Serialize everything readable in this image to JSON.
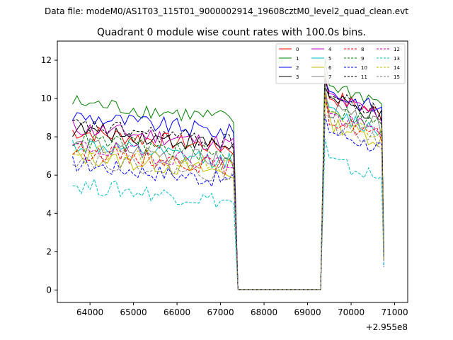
{
  "chart_data": {
    "type": "line",
    "suptitle": "Data file: modeM0/AS1T03_115T01_9000002914_19608cztM0_level2_quad_clean.evt",
    "title": "Quadrant 0 module wise count rates with 100.0s bins.",
    "xlabel": "",
    "ylabel": "",
    "x_offset_label": "+2.955e8",
    "xlim": [
      63250,
      71300
    ],
    "ylim": [
      -0.65,
      13.0
    ],
    "x_ticks": [
      64000,
      65000,
      66000,
      67000,
      68000,
      69000,
      70000,
      71000
    ],
    "x_tick_labels": [
      "64000",
      "65000",
      "66000",
      "67000",
      "68000",
      "69000",
      "70000",
      "71000"
    ],
    "y_ticks": [
      0,
      2,
      4,
      6,
      8,
      10,
      12
    ],
    "y_tick_labels": [
      "0",
      "2",
      "4",
      "6",
      "8",
      "10",
      "12"
    ],
    "legend_position": "top-right",
    "segments": [
      {
        "start": 63600,
        "end": 67300,
        "step": 100
      },
      {
        "start": 67400,
        "end": 69300,
        "step": 100
      },
      {
        "start": 69400,
        "end": 70700,
        "step": 100
      },
      {
        "start": 70750,
        "end": 70750,
        "step": 100
      }
    ],
    "series": [
      {
        "name": "0",
        "color": "#ff0000",
        "style": "solid",
        "base1": 8.3,
        "base2": 10.2,
        "last": 1.9
      },
      {
        "name": "1",
        "color": "#008000",
        "style": "solid",
        "base1": 9.8,
        "base2": 10.8,
        "last": 2.3
      },
      {
        "name": "2",
        "color": "#0000ff",
        "style": "solid",
        "base1": 9.1,
        "base2": 10.4,
        "last": 2.1
      },
      {
        "name": "3",
        "color": "#000000",
        "style": "solid",
        "base1": 8.4,
        "base2": 10.0,
        "last": 1.9
      },
      {
        "name": "4",
        "color": "#bf00bf",
        "style": "solid",
        "base1": 8.5,
        "base2": 10.1,
        "last": 1.9
      },
      {
        "name": "5",
        "color": "#00bfbf",
        "style": "solid",
        "base1": 7.6,
        "base2": 9.3,
        "last": 1.7
      },
      {
        "name": "6",
        "color": "#bfbf00",
        "style": "solid",
        "base1": 7.0,
        "base2": 8.8,
        "last": 1.6
      },
      {
        "name": "7",
        "color": "#808080",
        "style": "solid",
        "base1": 7.6,
        "base2": 9.5,
        "last": 1.7
      },
      {
        "name": "8",
        "color": "#ff0000",
        "style": "dashed",
        "base1": 7.3,
        "base2": 9.0,
        "last": 1.6
      },
      {
        "name": "9",
        "color": "#008000",
        "style": "dashed",
        "base1": 7.9,
        "base2": 9.6,
        "last": 1.8
      },
      {
        "name": "10",
        "color": "#0000ff",
        "style": "dashed",
        "base1": 6.6,
        "base2": 8.4,
        "last": 1.2
      },
      {
        "name": "11",
        "color": "#000000",
        "style": "dashed",
        "base1": 8.6,
        "base2": 10.2,
        "last": 1.8
      },
      {
        "name": "12",
        "color": "#bf00bf",
        "style": "dashed",
        "base1": 7.5,
        "base2": 9.2,
        "last": 1.6
      },
      {
        "name": "13",
        "color": "#00bfbf",
        "style": "dashed",
        "base1": 5.5,
        "base2": 6.8,
        "last": 1.3
      },
      {
        "name": "14",
        "color": "#bfbf00",
        "style": "dashed",
        "base1": 7.3,
        "base2": 9.1,
        "last": 1.6
      },
      {
        "name": "15",
        "color": "#808080",
        "style": "dashed",
        "base1": 6.9,
        "base2": 8.7,
        "last": 1.5
      }
    ]
  }
}
